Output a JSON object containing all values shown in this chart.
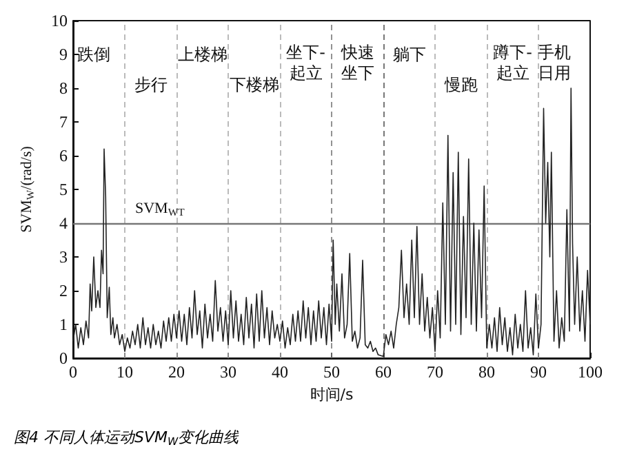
{
  "chart_data": {
    "type": "line",
    "xlabel": "时间/s",
    "ylabel": "SVM$_{W}$/(rad/s)",
    "xlim": [
      0,
      100
    ],
    "xticks": [
      0,
      10,
      20,
      30,
      40,
      50,
      60,
      70,
      80,
      90,
      100
    ],
    "ylim": [
      0,
      10
    ],
    "yticks": [
      0,
      1,
      2,
      3,
      4,
      5,
      6,
      7,
      8,
      9,
      10
    ],
    "grid": false,
    "marker": "none",
    "line_style": "solid",
    "x": [
      0,
      0.5,
      1,
      1.5,
      2,
      2.5,
      3,
      3.3,
      3.6,
      4,
      4.4,
      4.8,
      5.2,
      5.5,
      5.8,
      6,
      6.3,
      6.6,
      7,
      7.3,
      7.7,
      8,
      8.5,
      9,
      9.5,
      10,
      10.5,
      11,
      11.5,
      12,
      12.5,
      13,
      13.5,
      14,
      14.5,
      15,
      15.5,
      16,
      16.5,
      17,
      17.5,
      18,
      18.5,
      19,
      19.5,
      20,
      20.5,
      21,
      21.5,
      22,
      22.5,
      23,
      23.5,
      24,
      24.5,
      25,
      25.5,
      26,
      26.5,
      27,
      27.5,
      28,
      28.5,
      29,
      29.5,
      30,
      30.5,
      31,
      31.5,
      32,
      32.5,
      33,
      33.5,
      34,
      34.5,
      35,
      35.5,
      36,
      36.5,
      37,
      37.5,
      38,
      38.5,
      39,
      39.5,
      40,
      40.5,
      41,
      41.5,
      42,
      42.5,
      43,
      43.5,
      44,
      44.5,
      45,
      45.5,
      46,
      46.5,
      47,
      47.5,
      48,
      48.5,
      49,
      49.5,
      50,
      50.3,
      50.7,
      51,
      51.5,
      52,
      52.5,
      53,
      53.5,
      54,
      54.5,
      55,
      55.5,
      56,
      56.5,
      57,
      57.5,
      58,
      58.5,
      59,
      60,
      60.5,
      61,
      61.5,
      62,
      62.5,
      63,
      63.5,
      64,
      64.5,
      65,
      65.5,
      66,
      66.5,
      67,
      67.5,
      68,
      68.5,
      69,
      69.5,
      70,
      70.5,
      71,
      71.5,
      72,
      72.5,
      73,
      73.5,
      74,
      74.5,
      75,
      75.5,
      76,
      76.5,
      77,
      77.5,
      78,
      78.5,
      79,
      79.5,
      80,
      80.5,
      81,
      81.5,
      82,
      82.5,
      83,
      83.5,
      84,
      84.5,
      85,
      85.5,
      86,
      86.5,
      87,
      87.5,
      88,
      88.5,
      89,
      89.5,
      90,
      90.5,
      91,
      91.4,
      91.8,
      92.2,
      92.5,
      93,
      93.5,
      94,
      94.5,
      95,
      95.5,
      96,
      96.3,
      96.6,
      97,
      97.5,
      98,
      98.5,
      99,
      99.5,
      100
    ],
    "series": [
      {
        "color": "#222222",
        "values": [
          0.5,
          1.0,
          0.3,
          0.9,
          0.4,
          1.1,
          0.6,
          2.2,
          1.4,
          3.0,
          1.5,
          2.0,
          1.5,
          3.2,
          2.5,
          6.2,
          4.8,
          1.2,
          2.1,
          0.7,
          1.2,
          0.6,
          1.0,
          0.4,
          0.7,
          0.2,
          0.6,
          0.3,
          0.8,
          0.4,
          1.0,
          0.3,
          1.2,
          0.4,
          0.9,
          0.3,
          1.0,
          0.4,
          0.8,
          0.3,
          1.1,
          0.5,
          1.2,
          0.5,
          1.3,
          0.6,
          1.4,
          0.5,
          1.3,
          0.4,
          1.5,
          0.6,
          2.0,
          0.7,
          1.4,
          0.3,
          1.6,
          0.6,
          1.3,
          0.5,
          2.3,
          0.8,
          1.5,
          0.5,
          1.4,
          0.4,
          2.0,
          0.6,
          1.7,
          0.5,
          1.3,
          0.4,
          1.8,
          0.6,
          1.6,
          0.3,
          1.9,
          0.5,
          2.0,
          0.6,
          1.5,
          0.4,
          1.4,
          0.6,
          1.0,
          0.5,
          1.1,
          0.3,
          0.9,
          0.4,
          1.3,
          0.5,
          1.4,
          0.5,
          1.7,
          0.6,
          1.5,
          0.4,
          1.4,
          0.5,
          1.7,
          0.6,
          1.5,
          0.4,
          1.6,
          0.5,
          3.5,
          1.0,
          2.2,
          0.8,
          2.5,
          0.6,
          1.0,
          3.1,
          0.5,
          0.8,
          0.3,
          0.6,
          2.9,
          0.4,
          0.3,
          0.5,
          0.2,
          0.3,
          0.1,
          0.05,
          0.7,
          0.4,
          0.8,
          0.3,
          1.0,
          1.5,
          3.2,
          1.2,
          2.2,
          1.0,
          3.5,
          1.2,
          3.9,
          1.0,
          2.5,
          0.8,
          1.8,
          0.6,
          1.5,
          0.2,
          2.0,
          0.6,
          4.6,
          1.0,
          6.6,
          0.8,
          5.5,
          1.0,
          6.1,
          0.7,
          4.2,
          1.2,
          5.9,
          1.0,
          4.0,
          0.8,
          3.8,
          1.2,
          5.1,
          0.3,
          1.0,
          0.3,
          1.2,
          0.2,
          1.5,
          0.4,
          1.2,
          0.2,
          0.9,
          0.1,
          1.3,
          0.3,
          1.0,
          0.2,
          2.0,
          0.3,
          0.9,
          0.1,
          1.9,
          0.3,
          1.0,
          7.4,
          4.0,
          5.8,
          3.0,
          6.1,
          0.5,
          2.0,
          0.3,
          1.2,
          0.5,
          4.4,
          0.8,
          8.0,
          3.4,
          1.0,
          3.0,
          0.8,
          2.0,
          0.5,
          2.6,
          1.0
        ]
      }
    ],
    "ref_lines": [
      {
        "axis": "y",
        "value": 4,
        "label": "SVM$_{WT}$",
        "color": "#777777",
        "line_style": "solid"
      },
      {
        "axis": "x",
        "value": 10,
        "color": "#aaaaaa",
        "line_style": "dashed"
      },
      {
        "axis": "x",
        "value": 20,
        "color": "#aaaaaa",
        "line_style": "dashed"
      },
      {
        "axis": "x",
        "value": 30,
        "color": "#aaaaaa",
        "line_style": "dashed"
      },
      {
        "axis": "x",
        "value": 40,
        "color": "#aaaaaa",
        "line_style": "dashed"
      },
      {
        "axis": "x",
        "value": 50,
        "color": "#777777",
        "line_style": "dashed"
      },
      {
        "axis": "x",
        "value": 60,
        "color": "#555555",
        "line_style": "dashed"
      },
      {
        "axis": "x",
        "value": 70,
        "color": "#aaaaaa",
        "line_style": "dashed"
      },
      {
        "axis": "x",
        "value": 80,
        "color": "#aaaaaa",
        "line_style": "dashed"
      },
      {
        "axis": "x",
        "value": 90,
        "color": "#aaaaaa",
        "line_style": "dashed"
      }
    ],
    "annotations": [
      "跌倒",
      "步行",
      "上楼梯",
      "下楼梯",
      "坐下-起立",
      "快速坐下",
      "躺下",
      "慢跑",
      "蹲下-起立",
      "手机日用",
      "图4 不同人体运动SVM$_{W}$变化曲线"
    ]
  }
}
